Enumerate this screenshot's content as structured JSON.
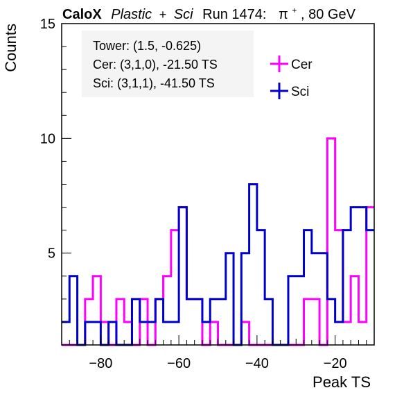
{
  "header": {
    "brand": "CaloX",
    "material": "Plastic",
    "plus": "+",
    "sci": "Sci",
    "run": "Run 1474:",
    "particle": "π",
    "charge": "+",
    "energy": ", 80 GeV"
  },
  "info": {
    "tower": "Tower: (1.5, -0.625)",
    "cer": "Cer: (3,1,0), -21.50 TS",
    "sci": "Sci: (3,1,1), -41.50 TS"
  },
  "colors": {
    "cer": "#ff00ff",
    "sci": "#0000cc",
    "axis": "#000000"
  },
  "chart_data": {
    "type": "histogram",
    "xlabel": "Peak TS",
    "ylabel": "Counts",
    "xlim": [
      -90,
      -10
    ],
    "ylim": [
      1,
      15
    ],
    "bin_width": 2,
    "x_ticks": [
      -80,
      -60,
      -40,
      -20
    ],
    "x_tick_labels": [
      "−80",
      "−60",
      "−40",
      "−20"
    ],
    "y_ticks": [
      5,
      10,
      15
    ],
    "y_tick_labels": [
      "5",
      "10",
      "15"
    ],
    "legend_position": "top-right",
    "series": [
      {
        "name": "Cer",
        "bin_starts": [
          -90,
          -88,
          -86,
          -84,
          -82,
          -80,
          -78,
          -76,
          -74,
          -72,
          -70,
          -68,
          -66,
          -64,
          -62,
          -60,
          -58,
          -56,
          -54,
          -52,
          -50,
          -48,
          -46,
          -44,
          -42,
          -40,
          -38,
          -36,
          -34,
          -32,
          -30,
          -28,
          -26,
          -24,
          -22,
          -20,
          -18,
          -16,
          -14,
          -12
        ],
        "values": [
          1,
          1,
          1,
          3,
          4,
          2,
          1,
          3,
          2,
          1,
          3,
          1,
          3,
          4,
          6,
          7,
          3,
          3,
          1,
          2,
          1,
          1,
          1,
          2,
          1,
          1,
          1,
          1,
          1,
          1,
          1,
          3,
          3,
          1,
          10,
          6,
          2,
          4,
          2,
          7
        ]
      },
      {
        "name": "Sci",
        "bin_starts": [
          -90,
          -88,
          -86,
          -84,
          -82,
          -80,
          -78,
          -76,
          -74,
          -72,
          -70,
          -68,
          -66,
          -64,
          -62,
          -60,
          -58,
          -56,
          -54,
          -52,
          -50,
          -48,
          -46,
          -44,
          -42,
          -40,
          -38,
          -36,
          -34,
          -32,
          -30,
          -28,
          -26,
          -24,
          -22,
          -20,
          -18,
          -16,
          -14,
          -12
        ],
        "values": [
          2,
          4,
          1,
          2,
          2,
          1,
          2,
          1,
          1,
          3,
          2,
          2,
          3,
          2,
          2,
          7,
          3,
          3,
          2,
          3,
          3,
          5,
          1,
          5,
          8,
          6,
          3,
          1,
          1,
          4,
          4,
          6,
          5,
          5,
          3,
          2,
          6,
          7,
          7,
          6
        ]
      }
    ]
  }
}
